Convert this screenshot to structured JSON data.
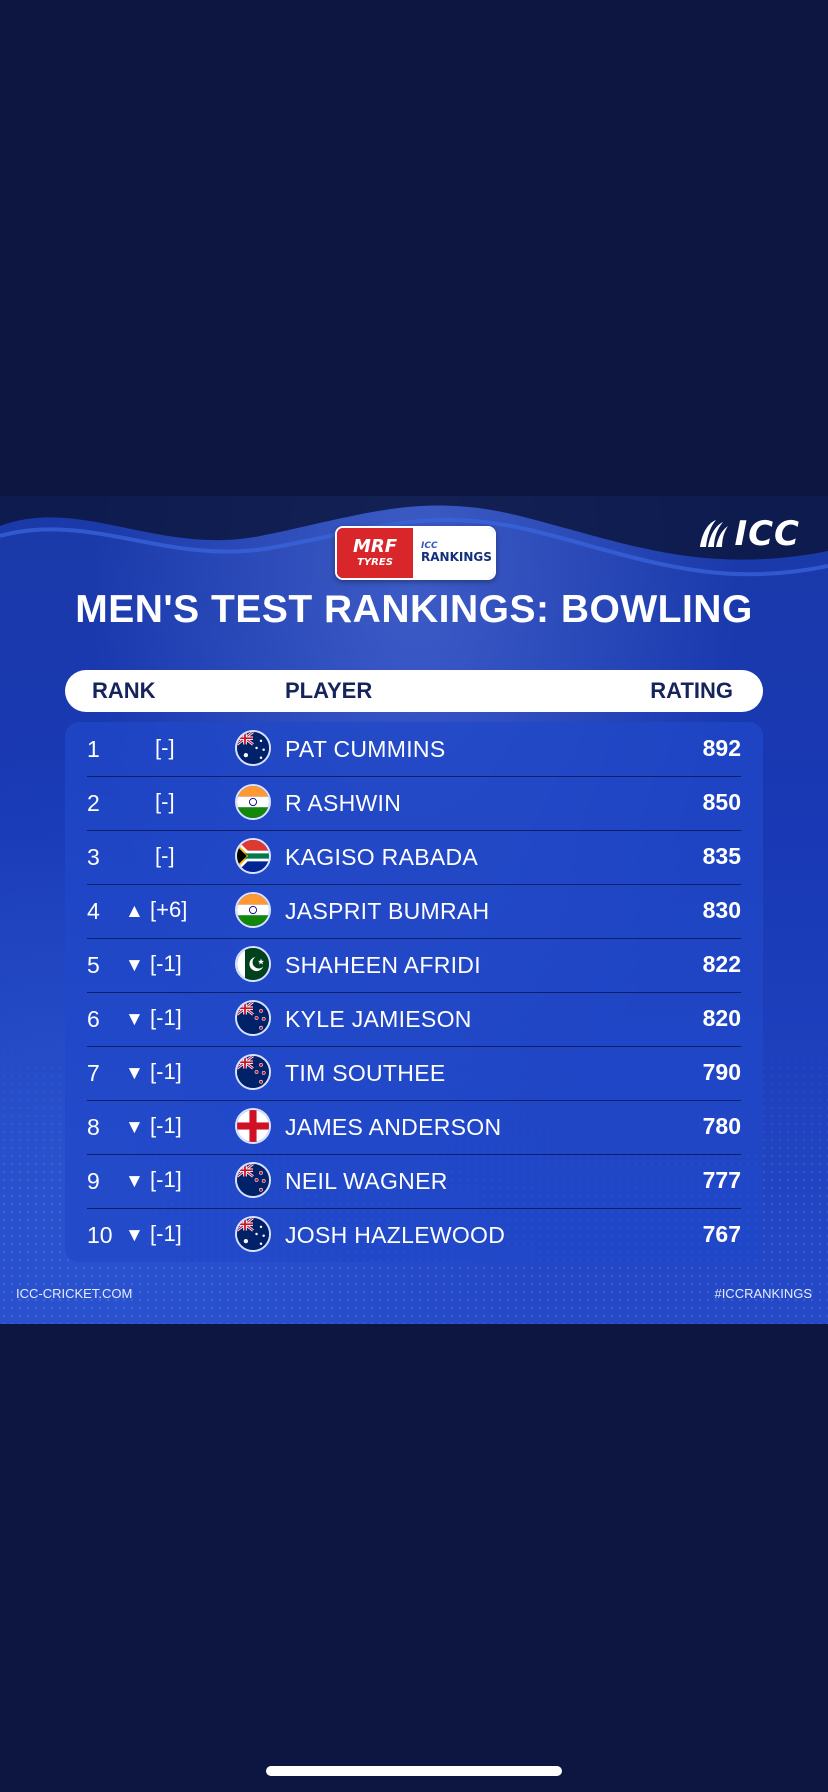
{
  "brand": {
    "icc_logo_text": "ICC",
    "sponsor_top": "MRF",
    "sponsor_bottom": "TYRES",
    "rankings_small": "ICC",
    "rankings_big": "RANKINGS"
  },
  "title": "MEN'S TEST RANKINGS: BOWLING",
  "columns": {
    "rank": "RANK",
    "player": "PLAYER",
    "rating": "RATING"
  },
  "rows": [
    {
      "rank": "1",
      "arrow": "",
      "change": "[-]",
      "country": "AUS",
      "name": "PAT CUMMINS",
      "rating": "892"
    },
    {
      "rank": "2",
      "arrow": "",
      "change": "[-]",
      "country": "IND",
      "name": "R ASHWIN",
      "rating": "850"
    },
    {
      "rank": "3",
      "arrow": "",
      "change": "[-]",
      "country": "RSA",
      "name": "KAGISO RABADA",
      "rating": "835"
    },
    {
      "rank": "4",
      "arrow": "▲",
      "change": "[+6]",
      "country": "IND",
      "name": "JASPRIT BUMRAH",
      "rating": "830"
    },
    {
      "rank": "5",
      "arrow": "▼",
      "change": "[-1]",
      "country": "PAK",
      "name": "SHAHEEN AFRIDI",
      "rating": "822"
    },
    {
      "rank": "6",
      "arrow": "▼",
      "change": "[-1]",
      "country": "NZ",
      "name": "KYLE JAMIESON",
      "rating": "820"
    },
    {
      "rank": "7",
      "arrow": "▼",
      "change": "[-1]",
      "country": "NZ",
      "name": "TIM SOUTHEE",
      "rating": "790"
    },
    {
      "rank": "8",
      "arrow": "▼",
      "change": "[-1]",
      "country": "ENG",
      "name": "JAMES ANDERSON",
      "rating": "780"
    },
    {
      "rank": "9",
      "arrow": "▼",
      "change": "[-1]",
      "country": "NZ",
      "name": "NEIL WAGNER",
      "rating": "777"
    },
    {
      "rank": "10",
      "arrow": "▼",
      "change": "[-1]",
      "country": "AUS",
      "name": "JOSH HAZLEWOOD",
      "rating": "767"
    }
  ],
  "footer": {
    "left": "ICC-CRICKET.COM",
    "right": "#ICCRANKINGS"
  }
}
